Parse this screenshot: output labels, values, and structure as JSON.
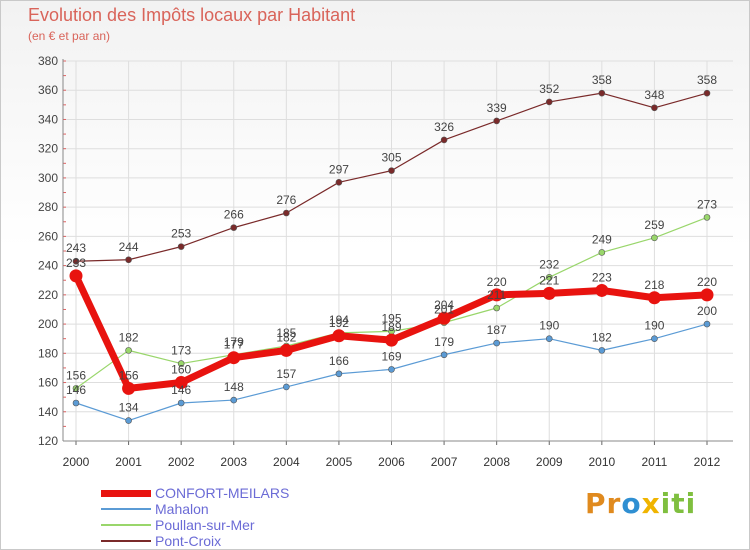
{
  "chart_data": {
    "type": "line",
    "title": "Evolution des Impôts locaux par Habitant",
    "subtitle": "(en € et par an)",
    "x": [
      "2000",
      "2001",
      "2002",
      "2003",
      "2004",
      "2005",
      "2006",
      "2007",
      "2008",
      "2009",
      "2010",
      "2011",
      "2012"
    ],
    "ylim": [
      120,
      380
    ],
    "yticks": [
      120,
      140,
      160,
      180,
      200,
      220,
      240,
      260,
      280,
      300,
      320,
      340,
      360,
      380
    ],
    "series": [
      {
        "name": "Pont-Croix",
        "color": "#7a2a2a",
        "width": 1.2,
        "values": [
          243,
          244,
          253,
          266,
          276,
          297,
          305,
          326,
          339,
          352,
          358,
          348,
          358
        ]
      },
      {
        "name": "Poullan-sur-Mer",
        "color": "#99d66b",
        "width": 1.2,
        "values": [
          156,
          182,
          173,
          179,
          185,
          194,
          195,
          201,
          211,
          232,
          249,
          259,
          273
        ],
        "labels": [
          "156",
          "182",
          "173",
          "179",
          "185",
          "194",
          "195",
          "201",
          "211",
          "232",
          "249",
          "259",
          "273"
        ]
      },
      {
        "name": "Mahalon",
        "color": "#5b9bd5",
        "width": 1.2,
        "values": [
          146,
          134,
          146,
          148,
          157,
          166,
          169,
          179,
          187,
          190,
          182,
          190,
          200
        ]
      },
      {
        "name": "CONFORT-MEILARS",
        "color": "#e8130f",
        "width": 7,
        "values": [
          233,
          156,
          160,
          177,
          182,
          192,
          189,
          204,
          220,
          221,
          223,
          218,
          220
        ]
      }
    ]
  },
  "legend": {
    "items": [
      {
        "label": "CONFORT-MEILARS",
        "color": "#e8130f",
        "thickness": 7
      },
      {
        "label": "Mahalon",
        "color": "#5b9bd5",
        "thickness": 1.5
      },
      {
        "label": "Poullan-sur-Mer",
        "color": "#99d66b",
        "thickness": 1.5
      },
      {
        "label": "Pont-Croix",
        "color": "#7a2a2a",
        "thickness": 1.5
      }
    ]
  },
  "brand": {
    "p1": "Pr",
    "p2": "o",
    "p3": "x",
    "p4": "iti"
  }
}
